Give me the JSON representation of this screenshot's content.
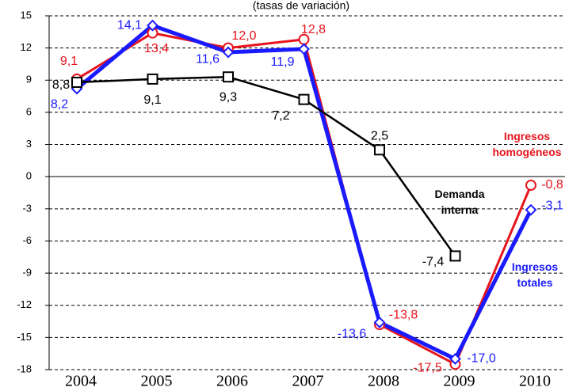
{
  "chart_data": {
    "type": "line",
    "subtitle": "(tasas de variación)",
    "categories": [
      "2004",
      "2005",
      "2006",
      "2007",
      "2008",
      "2009",
      "2010"
    ],
    "series": [
      {
        "name": "Ingresos homogéneos",
        "color": "#e8141c",
        "marker": "circle",
        "values": [
          9.1,
          13.4,
          12.0,
          12.8,
          -13.8,
          -17.5,
          -0.8
        ],
        "value_labels": [
          "9,1",
          "13,4",
          "12,0",
          "12,8",
          "-13,8",
          "-17,5",
          "-0,8"
        ]
      },
      {
        "name": "Ingresos totales",
        "color": "#1a1aff",
        "marker": "diamond",
        "values": [
          8.2,
          14.1,
          11.6,
          11.9,
          -13.6,
          -17.0,
          -3.1
        ],
        "value_labels": [
          "8,2",
          "14,1",
          "11,6",
          "11,9",
          "-13,6",
          "-17,0",
          "-3,1"
        ]
      },
      {
        "name": "Demanda interna",
        "color": "#000000",
        "marker": "square",
        "values": [
          8.8,
          9.1,
          9.3,
          7.2,
          2.5,
          -7.4,
          null
        ],
        "value_labels": [
          "8,8",
          "9,1",
          "9,3",
          "7,2",
          "2,5",
          "-7,4",
          null
        ]
      }
    ],
    "ylim": [
      -18,
      15
    ],
    "yticks": [
      -18,
      -15,
      -12,
      -9,
      -6,
      -3,
      0,
      3,
      6,
      9,
      12,
      15
    ],
    "grid": true
  }
}
